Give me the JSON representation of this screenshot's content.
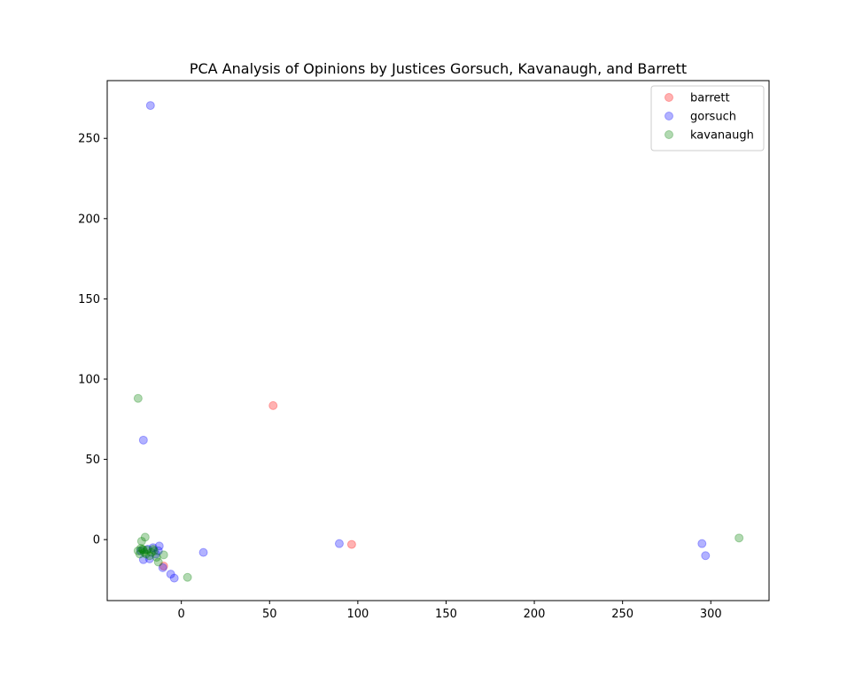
{
  "chart_data": {
    "type": "scatter",
    "title": "PCA Analysis of Opinions by Justices Gorsuch, Kavanaugh, and Barrett",
    "xlabel": "",
    "ylabel": "",
    "xlim": [
      -42,
      333
    ],
    "ylim": [
      -38,
      286
    ],
    "xticks": [
      0,
      50,
      100,
      150,
      200,
      250,
      300
    ],
    "yticks": [
      0,
      50,
      100,
      150,
      200,
      250
    ],
    "grid": false,
    "legend": "top-right",
    "series": [
      {
        "name": "barrett",
        "color": "#ff0000",
        "points": [
          [
            52,
            83.5
          ],
          [
            96.5,
            -3
          ],
          [
            -10,
            -16.5
          ]
        ]
      },
      {
        "name": "gorsuch",
        "color": "#0000ff",
        "points": [
          [
            -17.5,
            270.5
          ],
          [
            -21.5,
            62
          ],
          [
            89.5,
            -2.5
          ],
          [
            12.5,
            -8
          ],
          [
            295,
            -2.5
          ],
          [
            297,
            -10
          ],
          [
            -21.5,
            -12.5
          ],
          [
            -18,
            -12
          ],
          [
            -12.5,
            -4
          ],
          [
            -10.5,
            -17.5
          ],
          [
            -6,
            -21.5
          ],
          [
            -4,
            -24
          ],
          [
            -16,
            -5
          ],
          [
            -13,
            -7
          ],
          [
            -19,
            -6
          ],
          [
            -14.5,
            -9
          ],
          [
            -23,
            -7
          ]
        ]
      },
      {
        "name": "kavanaugh",
        "color": "#008000",
        "points": [
          [
            -24.5,
            88
          ],
          [
            316,
            1
          ],
          [
            3.5,
            -23.5
          ],
          [
            -20.5,
            1.5
          ],
          [
            -22.5,
            -1
          ],
          [
            -24.5,
            -7
          ],
          [
            -23.5,
            -9
          ],
          [
            -22,
            -6
          ],
          [
            -21,
            -8
          ],
          [
            -19.5,
            -6.5
          ],
          [
            -18,
            -10
          ],
          [
            -17,
            -8
          ],
          [
            -15.5,
            -7
          ],
          [
            -14,
            -11
          ],
          [
            -13,
            -14
          ],
          [
            -10,
            -9.5
          ],
          [
            -16,
            -6
          ],
          [
            -20,
            -9
          ],
          [
            -23,
            -5.5
          ],
          [
            -21.5,
            -6.5
          ]
        ]
      }
    ]
  }
}
